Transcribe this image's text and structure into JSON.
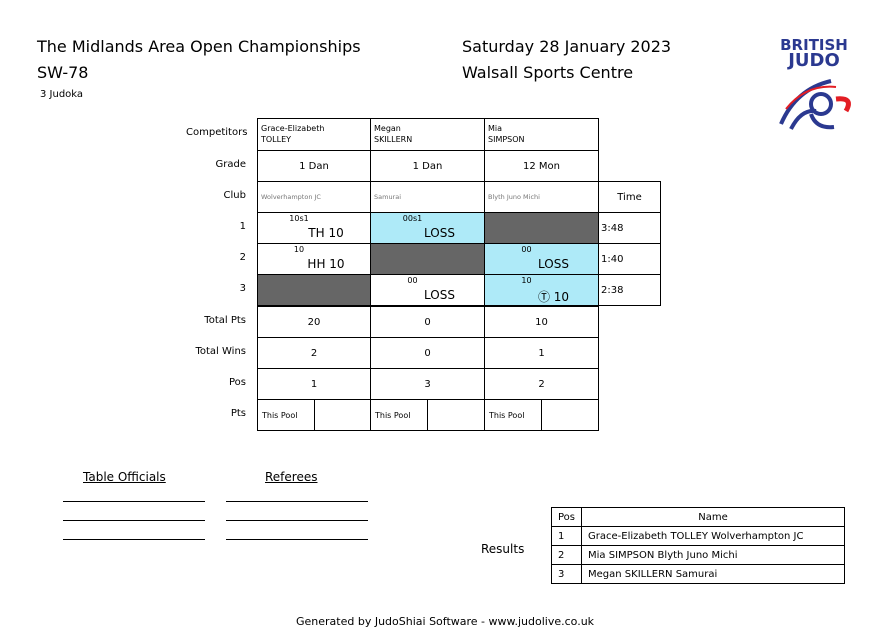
{
  "header": {
    "event": "The Midlands Area Open Championships",
    "category": "SW-78",
    "count": "3 Judoka",
    "date": "Saturday 28 January 2023",
    "venue": "Walsall Sports Centre",
    "logo_text": "BRITISH JUDO"
  },
  "row_labels": {
    "competitors": "Competitors",
    "grade": "Grade",
    "club": "Club",
    "time": "Time",
    "b1": "1",
    "b2": "2",
    "b3": "3",
    "total_pts": "Total Pts",
    "total_wins": "Total Wins",
    "pos": "Pos",
    "pts": "Pts"
  },
  "competitors": [
    {
      "first": "Grace-Elizabeth",
      "last": "TOLLEY",
      "grade": "1 Dan",
      "club": "Wolverhampton JC",
      "total_pts": "20",
      "total_wins": "2",
      "pos": "1",
      "pool": "This Pool"
    },
    {
      "first": "Megan",
      "last": "SKILLERN",
      "grade": "1 Dan",
      "club": "Samurai",
      "total_pts": "0",
      "total_wins": "0",
      "pos": "3",
      "pool": "This Pool"
    },
    {
      "first": "Mia",
      "last": "SIMPSON",
      "grade": "12 Mon",
      "club": "Blyth Juno Michi",
      "total_pts": "10",
      "total_wins": "1",
      "pos": "2",
      "pool": "This Pool"
    }
  ],
  "bouts": [
    {
      "time": "3:48",
      "cells": [
        {
          "score": "10s1",
          "result": "TH 10",
          "state": "white"
        },
        {
          "score": "00s1",
          "result": "LOSS",
          "state": "blue"
        },
        {
          "state": "grey"
        }
      ]
    },
    {
      "time": "1:40",
      "cells": [
        {
          "score": "10",
          "result": "HH 10",
          "state": "white"
        },
        {
          "state": "grey"
        },
        {
          "score": "00",
          "result": "LOSS",
          "state": "blue"
        }
      ]
    },
    {
      "time": "2:38",
      "cells": [
        {
          "state": "grey"
        },
        {
          "score": "00",
          "result": "LOSS",
          "state": "white"
        },
        {
          "score": "10",
          "result": "Ⓣ 10",
          "state": "blue"
        }
      ]
    }
  ],
  "officials": {
    "table": "Table Officials",
    "referees": "Referees"
  },
  "results": {
    "label": "Results",
    "headers": [
      "Pos",
      "Name"
    ],
    "rows": [
      [
        "1",
        "Grace-Elizabeth TOLLEY Wolverhampton JC"
      ],
      [
        "2",
        "Mia SIMPSON Blyth Juno Michi"
      ],
      [
        "3",
        "Megan SKILLERN Samurai"
      ]
    ]
  },
  "footer": "Generated by JudoShiai Software - www.judolive.co.uk",
  "colors": {
    "winner_cell": "#aeeaf8",
    "empty_cell": "#666666",
    "logo_blue": "#2b3990",
    "logo_red": "#e31e24"
  }
}
